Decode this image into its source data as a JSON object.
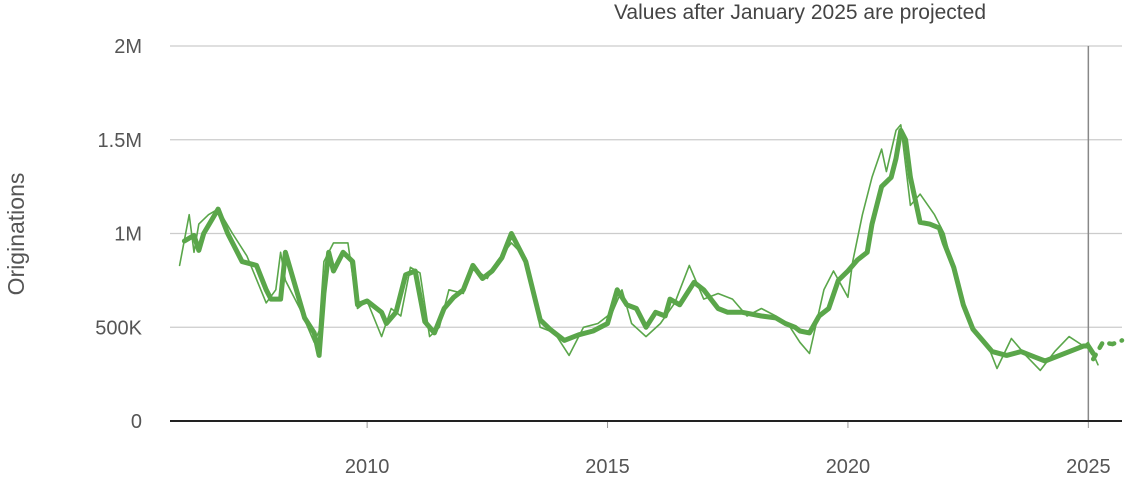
{
  "chart_data": {
    "type": "line",
    "title": "",
    "annotation": "Values after January 2025 are projected",
    "xlabel": "",
    "ylabel": "Originations",
    "xlim": [
      2005.9,
      2025.7
    ],
    "ylim": [
      0,
      2000000
    ],
    "grid": true,
    "projection_start": 2025.0,
    "colors": {
      "series": "#5aa64a",
      "grid": "#cccccc",
      "axis": "#222222",
      "marker": "#888888"
    },
    "x_ticks": [
      {
        "value": 2010,
        "label": "2010"
      },
      {
        "value": 2015,
        "label": "2015"
      },
      {
        "value": 2020,
        "label": "2020"
      },
      {
        "value": 2025,
        "label": "2025"
      }
    ],
    "y_ticks": [
      {
        "value": 0,
        "label": "0"
      },
      {
        "value": 500000,
        "label": "500K"
      },
      {
        "value": 1000000,
        "label": "1M"
      },
      {
        "value": 1500000,
        "label": "1.5M"
      },
      {
        "value": 2000000,
        "label": "2M"
      }
    ],
    "series": [
      {
        "style": "thick",
        "x": [
          2006.2,
          2006.4,
          2006.5,
          2006.6,
          2006.9,
          2007.1,
          2007.4,
          2007.7,
          2007.9,
          2008.0,
          2008.2,
          2008.3,
          2008.7,
          2008.9,
          2009.0,
          2009.1,
          2009.2,
          2009.3,
          2009.5,
          2009.7,
          2009.8,
          2010.0,
          2010.3,
          2010.4,
          2010.6,
          2010.8,
          2011.0,
          2011.2,
          2011.4,
          2011.6,
          2011.8,
          2012.0,
          2012.2,
          2012.4,
          2012.6,
          2012.8,
          2013.0,
          2013.3,
          2013.6,
          2013.8,
          2014.1,
          2014.4,
          2014.7,
          2015.0,
          2015.2,
          2015.4,
          2015.6,
          2015.8,
          2016.0,
          2016.2,
          2016.3,
          2016.5,
          2016.6,
          2016.8,
          2017.0,
          2017.3,
          2017.5,
          2017.8,
          2018.2,
          2018.5,
          2018.7,
          2018.9,
          2019.0,
          2019.2,
          2019.4,
          2019.6,
          2019.8,
          2020.0,
          2020.2,
          2020.4,
          2020.5,
          2020.7,
          2020.9,
          2021.0,
          2021.1,
          2021.2,
          2021.3,
          2021.5,
          2021.7,
          2021.9,
          2022.0,
          2022.2,
          2022.4,
          2022.6,
          2022.8,
          2023.0,
          2023.3,
          2023.6,
          2023.9,
          2024.1,
          2024.4,
          2024.7,
          2024.9,
          2025.0,
          2025.1
        ],
        "y": [
          960000,
          990000,
          910000,
          1000000,
          1130000,
          1000000,
          850000,
          830000,
          700000,
          650000,
          650000,
          900000,
          550000,
          470000,
          350000,
          680000,
          900000,
          800000,
          900000,
          850000,
          620000,
          640000,
          580000,
          520000,
          580000,
          780000,
          800000,
          530000,
          470000,
          600000,
          660000,
          700000,
          830000,
          760000,
          800000,
          870000,
          1000000,
          850000,
          540000,
          490000,
          430000,
          460000,
          480000,
          520000,
          700000,
          620000,
          600000,
          500000,
          580000,
          560000,
          650000,
          620000,
          660000,
          740000,
          700000,
          600000,
          580000,
          580000,
          560000,
          550000,
          520000,
          500000,
          480000,
          470000,
          560000,
          600000,
          750000,
          800000,
          860000,
          900000,
          1050000,
          1250000,
          1300000,
          1400000,
          1550000,
          1500000,
          1300000,
          1060000,
          1050000,
          1030000,
          950000,
          820000,
          620000,
          490000,
          430000,
          370000,
          350000,
          370000,
          340000,
          320000,
          350000,
          380000,
          400000,
          400000,
          360000
        ]
      },
      {
        "style": "thin",
        "x": [
          2006.1,
          2006.3,
          2006.4,
          2006.5,
          2006.7,
          2006.9,
          2007.2,
          2007.5,
          2007.9,
          2008.1,
          2008.2,
          2008.3,
          2008.6,
          2008.9,
          2009.0,
          2009.1,
          2009.3,
          2009.6,
          2009.8,
          2010.0,
          2010.3,
          2010.5,
          2010.7,
          2010.9,
          2011.1,
          2011.3,
          2011.5,
          2011.7,
          2012.0,
          2012.2,
          2012.5,
          2012.7,
          2013.0,
          2013.3,
          2013.6,
          2013.9,
          2014.2,
          2014.5,
          2014.8,
          2015.1,
          2015.3,
          2015.5,
          2015.8,
          2016.1,
          2016.4,
          2016.7,
          2017.0,
          2017.3,
          2017.6,
          2017.9,
          2018.2,
          2018.5,
          2018.8,
          2019.0,
          2019.2,
          2019.5,
          2019.7,
          2020.0,
          2020.1,
          2020.3,
          2020.5,
          2020.7,
          2020.8,
          2021.0,
          2021.1,
          2021.3,
          2021.5,
          2021.8,
          2022.0,
          2022.3,
          2022.6,
          2022.9,
          2023.1,
          2023.4,
          2023.7,
          2024.0,
          2024.3,
          2024.6,
          2024.9,
          2025.0,
          2025.2
        ],
        "y": [
          830000,
          1100000,
          900000,
          1050000,
          1100000,
          1130000,
          1000000,
          880000,
          630000,
          700000,
          900000,
          750000,
          600000,
          420000,
          480000,
          850000,
          950000,
          950000,
          600000,
          640000,
          450000,
          600000,
          560000,
          820000,
          790000,
          450000,
          500000,
          700000,
          680000,
          820000,
          760000,
          850000,
          950000,
          870000,
          500000,
          470000,
          350000,
          500000,
          520000,
          580000,
          700000,
          520000,
          450000,
          520000,
          630000,
          830000,
          650000,
          680000,
          650000,
          560000,
          600000,
          560000,
          500000,
          420000,
          360000,
          700000,
          800000,
          660000,
          850000,
          1100000,
          1300000,
          1450000,
          1330000,
          1550000,
          1580000,
          1150000,
          1210000,
          1100000,
          1000000,
          700000,
          500000,
          410000,
          280000,
          440000,
          350000,
          270000,
          370000,
          450000,
          400000,
          420000,
          300000
        ]
      },
      {
        "style": "dotted",
        "x": [
          2025.1,
          2025.3,
          2025.5,
          2025.7
        ],
        "y": [
          330000,
          420000,
          410000,
          430000
        ]
      }
    ]
  }
}
